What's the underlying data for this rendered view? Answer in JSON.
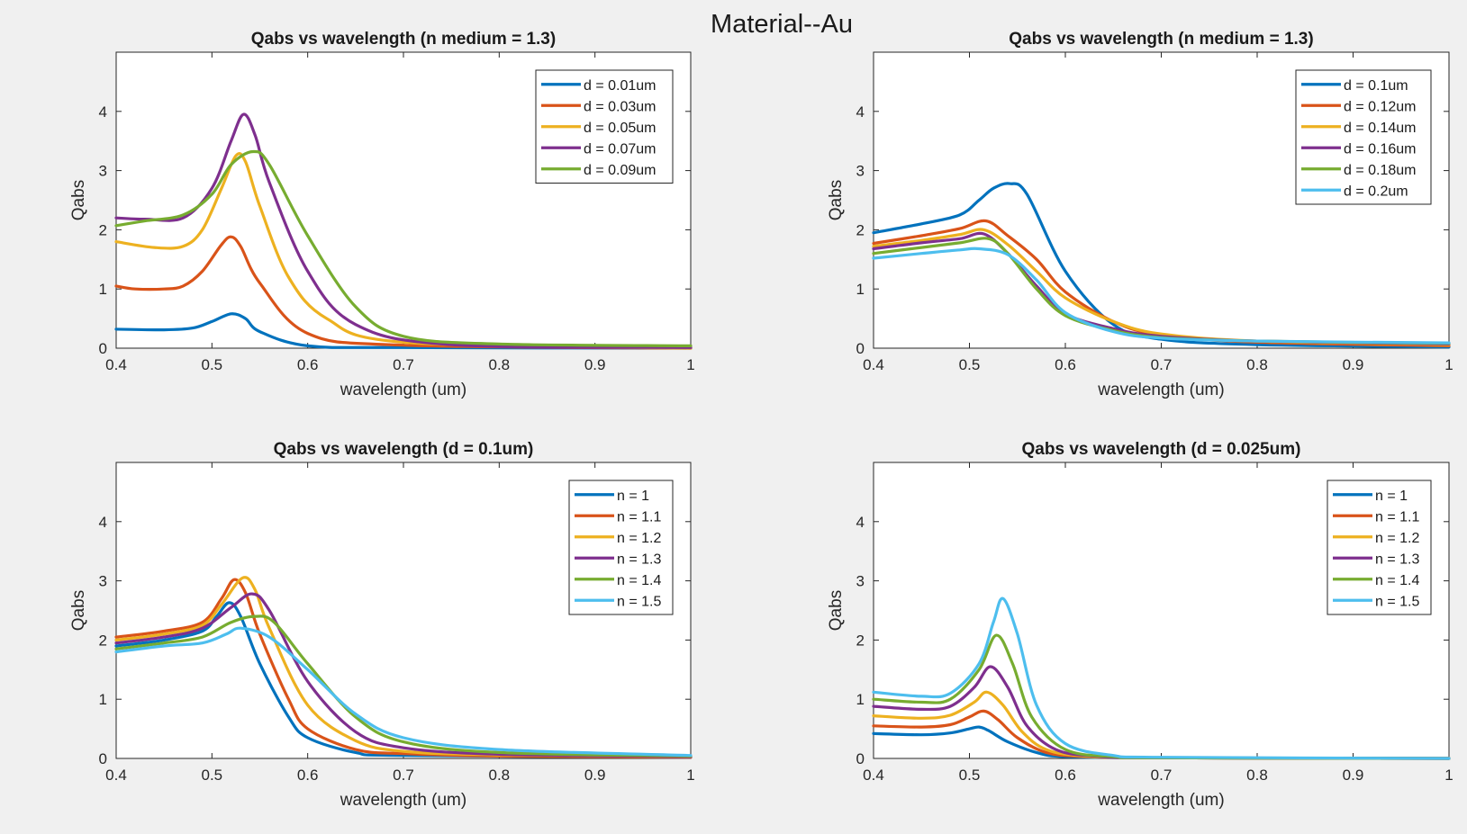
{
  "figure": {
    "suptitle": "Material--Au"
  },
  "chart_data": [
    {
      "type": "line",
      "title": "Qabs vs wavelength (n medium = 1.3)",
      "xlabel": "wavelength (um)",
      "ylabel": "Qabs",
      "xlim": [
        0.4,
        1
      ],
      "ylim": [
        0,
        5
      ],
      "xticks": [
        "0.4",
        "0.5",
        "0.6",
        "0.7",
        "0.8",
        "0.9",
        "1"
      ],
      "yticks": [
        "0",
        "1",
        "2",
        "3",
        "4"
      ],
      "legend_position": "top-right",
      "grid": false,
      "series": [
        {
          "name": "d = 0.01um",
          "color": "#0072BD",
          "x": [
            0.4,
            0.45,
            0.48,
            0.5,
            0.52,
            0.535,
            0.55,
            0.6,
            0.7,
            1.0
          ],
          "y": [
            0.32,
            0.31,
            0.34,
            0.45,
            0.58,
            0.5,
            0.28,
            0.04,
            0.01,
            0.0
          ]
        },
        {
          "name": "d = 0.03um",
          "color": "#D95319",
          "x": [
            0.4,
            0.42,
            0.45,
            0.47,
            0.49,
            0.51,
            0.52,
            0.53,
            0.55,
            0.6,
            0.7,
            1.0
          ],
          "y": [
            1.05,
            1.0,
            1.0,
            1.05,
            1.3,
            1.75,
            1.88,
            1.72,
            1.1,
            0.25,
            0.05,
            0.0
          ]
        },
        {
          "name": "d = 0.05um",
          "color": "#EDB120",
          "x": [
            0.4,
            0.44,
            0.47,
            0.49,
            0.51,
            0.525,
            0.535,
            0.55,
            0.58,
            0.62,
            0.7,
            1.0
          ],
          "y": [
            1.8,
            1.7,
            1.72,
            2.0,
            2.7,
            3.25,
            3.15,
            2.4,
            1.2,
            0.5,
            0.1,
            0.0
          ]
        },
        {
          "name": "d = 0.07um",
          "color": "#7E2F8E",
          "x": [
            0.4,
            0.43,
            0.47,
            0.5,
            0.52,
            0.533,
            0.545,
            0.56,
            0.6,
            0.65,
            0.75,
            1.0
          ],
          "y": [
            2.2,
            2.18,
            2.2,
            2.7,
            3.5,
            3.95,
            3.6,
            2.8,
            1.3,
            0.4,
            0.06,
            0.01
          ]
        },
        {
          "name": "d = 0.09um",
          "color": "#77AC30",
          "x": [
            0.4,
            0.43,
            0.47,
            0.5,
            0.52,
            0.543,
            0.56,
            0.6,
            0.65,
            0.7,
            0.8,
            1.0
          ],
          "y": [
            2.07,
            2.15,
            2.25,
            2.6,
            3.1,
            3.32,
            3.1,
            1.9,
            0.7,
            0.2,
            0.07,
            0.04
          ]
        }
      ]
    },
    {
      "type": "line",
      "title": "Qabs vs wavelength (n medium = 1.3)",
      "xlabel": "wavelength (um)",
      "ylabel": "Qabs",
      "xlim": [
        0.4,
        1
      ],
      "ylim": [
        0,
        5
      ],
      "xticks": [
        "0.4",
        "0.5",
        "0.6",
        "0.7",
        "0.8",
        "0.9",
        "1"
      ],
      "yticks": [
        "0",
        "1",
        "2",
        "3",
        "4"
      ],
      "legend_position": "top-right",
      "grid": false,
      "series": [
        {
          "name": "d = 0.1um",
          "color": "#0072BD",
          "x": [
            0.4,
            0.45,
            0.49,
            0.51,
            0.525,
            0.542,
            0.56,
            0.6,
            0.65,
            0.7,
            0.8,
            1.0
          ],
          "y": [
            1.95,
            2.1,
            2.25,
            2.5,
            2.7,
            2.78,
            2.6,
            1.3,
            0.4,
            0.15,
            0.06,
            0.02
          ]
        },
        {
          "name": "d = 0.12um",
          "color": "#D95319",
          "x": [
            0.4,
            0.45,
            0.49,
            0.517,
            0.54,
            0.57,
            0.6,
            0.65,
            0.7,
            0.8,
            1.0
          ],
          "y": [
            1.77,
            1.9,
            2.02,
            2.15,
            1.9,
            1.5,
            0.95,
            0.45,
            0.22,
            0.1,
            0.04
          ]
        },
        {
          "name": "d = 0.14um",
          "color": "#EDB120",
          "x": [
            0.4,
            0.45,
            0.49,
            0.515,
            0.54,
            0.57,
            0.6,
            0.65,
            0.7,
            0.8,
            1.0
          ],
          "y": [
            1.72,
            1.82,
            1.92,
            2.0,
            1.75,
            1.3,
            0.85,
            0.45,
            0.24,
            0.12,
            0.06
          ]
        },
        {
          "name": "d = 0.16um",
          "color": "#7E2F8E",
          "x": [
            0.4,
            0.45,
            0.49,
            0.515,
            0.54,
            0.57,
            0.6,
            0.65,
            0.7,
            0.8,
            1.0
          ],
          "y": [
            1.68,
            1.78,
            1.85,
            1.93,
            1.6,
            1.05,
            0.58,
            0.33,
            0.2,
            0.12,
            0.07
          ]
        },
        {
          "name": "d = 0.18um",
          "color": "#77AC30",
          "x": [
            0.4,
            0.45,
            0.49,
            0.52,
            0.54,
            0.57,
            0.6,
            0.65,
            0.7,
            0.8,
            1.0
          ],
          "y": [
            1.6,
            1.7,
            1.78,
            1.85,
            1.6,
            1.0,
            0.55,
            0.3,
            0.18,
            0.12,
            0.08
          ]
        },
        {
          "name": "d = 0.2um",
          "color": "#4DBEEE",
          "x": [
            0.4,
            0.45,
            0.49,
            0.51,
            0.54,
            0.57,
            0.6,
            0.65,
            0.7,
            0.8,
            1.0
          ],
          "y": [
            1.52,
            1.6,
            1.66,
            1.68,
            1.58,
            1.15,
            0.6,
            0.28,
            0.17,
            0.12,
            0.09
          ]
        }
      ]
    },
    {
      "type": "line",
      "title": "Qabs vs wavelength (d = 0.1um)",
      "xlabel": "wavelength (um)",
      "ylabel": "Qabs",
      "xlim": [
        0.4,
        1
      ],
      "ylim": [
        0,
        5
      ],
      "xticks": [
        "0.4",
        "0.5",
        "0.6",
        "0.7",
        "0.8",
        "0.9",
        "1"
      ],
      "yticks": [
        "0",
        "1",
        "2",
        "3",
        "4"
      ],
      "legend_position": "top-right",
      "grid": false,
      "series": [
        {
          "name": "n = 1",
          "color": "#0072BD",
          "x": [
            0.4,
            0.45,
            0.49,
            0.505,
            0.518,
            0.53,
            0.55,
            0.58,
            0.6,
            0.65,
            0.7,
            1.0
          ],
          "y": [
            1.9,
            2.0,
            2.15,
            2.4,
            2.63,
            2.4,
            1.6,
            0.7,
            0.35,
            0.1,
            0.05,
            0.02
          ]
        },
        {
          "name": "n = 1.1",
          "color": "#D95319",
          "x": [
            0.4,
            0.45,
            0.49,
            0.51,
            0.523,
            0.535,
            0.55,
            0.58,
            0.6,
            0.65,
            0.7,
            0.8,
            1.0
          ],
          "y": [
            2.05,
            2.15,
            2.3,
            2.7,
            3.02,
            2.8,
            2.1,
            1.0,
            0.5,
            0.15,
            0.08,
            0.04,
            0.02
          ]
        },
        {
          "name": "n = 1.2",
          "color": "#EDB120",
          "x": [
            0.4,
            0.45,
            0.49,
            0.51,
            0.532,
            0.545,
            0.56,
            0.6,
            0.65,
            0.7,
            0.8,
            1.0
          ],
          "y": [
            2.0,
            2.1,
            2.25,
            2.6,
            3.05,
            2.85,
            2.2,
            0.9,
            0.3,
            0.12,
            0.06,
            0.03
          ]
        },
        {
          "name": "n = 1.3",
          "color": "#7E2F8E",
          "x": [
            0.4,
            0.45,
            0.49,
            0.52,
            0.542,
            0.56,
            0.6,
            0.65,
            0.7,
            0.8,
            1.0
          ],
          "y": [
            1.95,
            2.05,
            2.2,
            2.55,
            2.78,
            2.5,
            1.3,
            0.45,
            0.18,
            0.07,
            0.03
          ]
        },
        {
          "name": "n = 1.4",
          "color": "#77AC30",
          "x": [
            0.4,
            0.45,
            0.49,
            0.52,
            0.545,
            0.565,
            0.6,
            0.65,
            0.7,
            0.8,
            1.0
          ],
          "y": [
            1.85,
            1.95,
            2.05,
            2.3,
            2.4,
            2.3,
            1.6,
            0.7,
            0.28,
            0.1,
            0.04
          ]
        },
        {
          "name": "n = 1.5",
          "color": "#4DBEEE",
          "x": [
            0.4,
            0.45,
            0.49,
            0.515,
            0.53,
            0.56,
            0.6,
            0.65,
            0.7,
            0.8,
            1.0
          ],
          "y": [
            1.8,
            1.9,
            1.95,
            2.1,
            2.2,
            2.05,
            1.5,
            0.75,
            0.35,
            0.15,
            0.05
          ]
        }
      ]
    },
    {
      "type": "line",
      "title": "Qabs vs wavelength (d = 0.025um)",
      "xlabel": "wavelength (um)",
      "ylabel": "Qabs",
      "xlim": [
        0.4,
        1
      ],
      "ylim": [
        0,
        5
      ],
      "xticks": [
        "0.4",
        "0.5",
        "0.6",
        "0.7",
        "0.8",
        "0.9",
        "1"
      ],
      "yticks": [
        "0",
        "1",
        "2",
        "3",
        "4"
      ],
      "legend_position": "top-right",
      "grid": false,
      "series": [
        {
          "name": "n = 1",
          "color": "#0072BD",
          "x": [
            0.4,
            0.45,
            0.48,
            0.5,
            0.51,
            0.52,
            0.54,
            0.57,
            0.6,
            0.7,
            1.0
          ],
          "y": [
            0.42,
            0.4,
            0.43,
            0.5,
            0.53,
            0.47,
            0.28,
            0.1,
            0.03,
            0.01,
            0.0
          ]
        },
        {
          "name": "n = 1.1",
          "color": "#D95319",
          "x": [
            0.4,
            0.45,
            0.48,
            0.5,
            0.515,
            0.53,
            0.55,
            0.58,
            0.62,
            0.7,
            1.0
          ],
          "y": [
            0.55,
            0.53,
            0.57,
            0.7,
            0.8,
            0.65,
            0.35,
            0.1,
            0.03,
            0.01,
            0.0
          ]
        },
        {
          "name": "n = 1.2",
          "color": "#EDB120",
          "x": [
            0.4,
            0.45,
            0.48,
            0.505,
            0.518,
            0.535,
            0.555,
            0.58,
            0.62,
            0.7,
            1.0
          ],
          "y": [
            0.72,
            0.68,
            0.73,
            0.95,
            1.12,
            0.9,
            0.45,
            0.15,
            0.04,
            0.01,
            0.0
          ]
        },
        {
          "name": "n = 1.3",
          "color": "#7E2F8E",
          "x": [
            0.4,
            0.45,
            0.48,
            0.505,
            0.522,
            0.54,
            0.56,
            0.59,
            0.63,
            0.7,
            1.0
          ],
          "y": [
            0.88,
            0.83,
            0.88,
            1.2,
            1.55,
            1.2,
            0.55,
            0.15,
            0.04,
            0.01,
            0.0
          ]
        },
        {
          "name": "n = 1.4",
          "color": "#77AC30",
          "x": [
            0.4,
            0.45,
            0.48,
            0.51,
            0.528,
            0.545,
            0.565,
            0.6,
            0.65,
            0.7,
            1.0
          ],
          "y": [
            1.0,
            0.95,
            1.0,
            1.5,
            2.08,
            1.6,
            0.7,
            0.15,
            0.03,
            0.01,
            0.0
          ]
        },
        {
          "name": "n = 1.5",
          "color": "#4DBEEE",
          "x": [
            0.4,
            0.45,
            0.48,
            0.51,
            0.525,
            0.535,
            0.55,
            0.57,
            0.6,
            0.65,
            0.7,
            1.0
          ],
          "y": [
            1.12,
            1.05,
            1.1,
            1.6,
            2.3,
            2.7,
            2.1,
            0.9,
            0.25,
            0.05,
            0.02,
            0.0
          ]
        }
      ]
    }
  ]
}
